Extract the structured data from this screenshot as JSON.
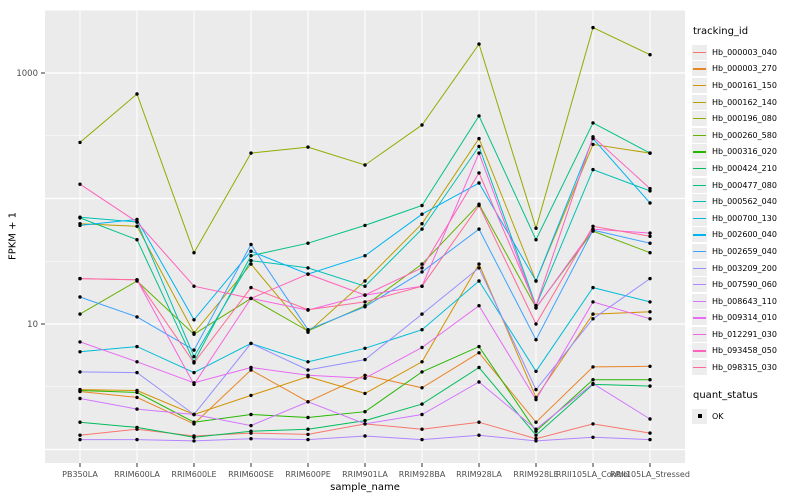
{
  "chart_data": {
    "type": "line",
    "title": "",
    "xlabel": "sample_name",
    "ylabel": "FPKM + 1",
    "y_scale": "log10",
    "y_axis_ticks": [
      {
        "value": 10,
        "label": "10"
      },
      {
        "value": 1000,
        "label": "1000"
      }
    ],
    "y_gridlines_major": [
      1,
      10,
      100,
      1000
    ],
    "y_gridlines_minor_log10": [
      0.5,
      1.5,
      2.5,
      3.5
    ],
    "categories": [
      "PB350LA",
      "RRIM600LA",
      "RRIM600LE",
      "RRIM600SE",
      "RRIM600PE",
      "RRIM901LA",
      "RRIM928BA",
      "RRIM928LA",
      "RRIM928LE",
      "RRII105LA_Control",
      "RRII105LA_Stressed"
    ],
    "series": [
      {
        "name": "Hb_000003_040",
        "color": "#F8766D",
        "values": [
          1.3,
          1.45,
          1.28,
          1.35,
          1.32,
          1.6,
          1.45,
          1.65,
          1.22,
          1.6,
          1.35
        ]
      },
      {
        "name": "Hb_000003_270",
        "color": "#E88526",
        "values": [
          2.9,
          2.6,
          1.6,
          4.3,
          2.4,
          3.9,
          3.1,
          5.9,
          1.65,
          4.55,
          4.6
        ]
      },
      {
        "name": "Hb_000161_150",
        "color": "#D39200",
        "values": [
          3.0,
          2.95,
          1.9,
          2.7,
          3.8,
          2.8,
          5.0,
          30.0,
          2.6,
          12.0,
          12.5
        ]
      },
      {
        "name": "Hb_000162_140",
        "color": "#B79F00",
        "values": [
          63,
          60,
          8.5,
          30,
          8.6,
          22,
          63,
          300,
          22,
          270,
          230
        ]
      },
      {
        "name": "Hb_000196_080",
        "color": "#93AA00",
        "values": [
          280,
          680,
          37,
          230,
          257,
          185,
          385,
          1700,
          58,
          2300,
          1400
        ]
      },
      {
        "name": "Hb_000260_580",
        "color": "#64B200",
        "values": [
          12,
          22,
          8.3,
          16,
          8.8,
          14,
          30,
          90,
          13.5,
          55,
          37
        ]
      },
      {
        "name": "Hb_000316_020",
        "color": "#25B700",
        "values": [
          2.95,
          2.85,
          1.65,
          1.9,
          1.8,
          2.0,
          4.15,
          6.6,
          1.4,
          3.6,
          3.6
        ]
      },
      {
        "name": "Hb_000424_210",
        "color": "#00BC5C",
        "values": [
          1.65,
          1.5,
          1.25,
          1.4,
          1.45,
          1.7,
          2.3,
          4.5,
          1.3,
          3.3,
          3.2
        ]
      },
      {
        "name": "Hb_000477_080",
        "color": "#00C087",
        "values": [
          70,
          47,
          5.0,
          35,
          44,
          61,
          88,
          455,
          47,
          400,
          230
        ]
      },
      {
        "name": "Hb_000562_040",
        "color": "#00C0B4",
        "values": [
          71,
          65,
          5.5,
          32,
          28,
          20,
          57,
          260,
          14,
          170,
          115
        ]
      },
      {
        "name": "Hb_000700_130",
        "color": "#00BCD8",
        "values": [
          6.0,
          6.6,
          4.1,
          7.0,
          5.0,
          6.4,
          9.0,
          22,
          4.2,
          19.5,
          15
        ]
      },
      {
        "name": "Hb_002600_040",
        "color": "#00B3F2",
        "values": [
          61,
          68,
          10.8,
          38,
          25,
          35,
          75,
          133,
          22,
          300,
          92
        ]
      },
      {
        "name": "Hb_002659_040",
        "color": "#3DA1FF",
        "values": [
          16.4,
          11.4,
          6.2,
          43,
          9.0,
          13.7,
          26,
          57,
          7.5,
          56,
          44
        ]
      },
      {
        "name": "Hb_003209_200",
        "color": "#9590FF",
        "values": [
          4.15,
          4.1,
          1.9,
          7.0,
          4.3,
          5.2,
          12.0,
          28.0,
          3.0,
          11.0,
          23.0
        ]
      },
      {
        "name": "Hb_007590_060",
        "color": "#B385FF",
        "values": [
          1.2,
          1.2,
          1.17,
          1.22,
          1.2,
          1.28,
          1.2,
          1.3,
          1.17,
          1.25,
          1.2
        ]
      },
      {
        "name": "Hb_008643_110",
        "color": "#D277FF",
        "values": [
          2.55,
          2.1,
          1.9,
          1.55,
          2.4,
          1.6,
          1.9,
          3.45,
          1.45,
          3.35,
          1.75
        ]
      },
      {
        "name": "Hb_009314_010",
        "color": "#E76BF3",
        "values": [
          7.2,
          5.0,
          3.4,
          4.5,
          3.9,
          3.7,
          6.5,
          14.0,
          2.5,
          15.0,
          11.0
        ]
      },
      {
        "name": "Hb_012291_030",
        "color": "#F763DF",
        "values": [
          23,
          22.5,
          3.3,
          16,
          12.9,
          17,
          20,
          230,
          13.4,
          57,
          53
        ]
      },
      {
        "name": "Hb_093458_050",
        "color": "#FF62BC",
        "values": [
          130,
          65,
          20,
          16,
          25,
          17,
          28,
          160,
          14,
          310,
          120
        ]
      },
      {
        "name": "Hb_098315_030",
        "color": "#FF6A98",
        "values": [
          23,
          22.5,
          4.9,
          19.5,
          13,
          15,
          20,
          88,
          10,
          60,
          50
        ]
      }
    ],
    "legend": {
      "color_legend_title": "tracking_id",
      "shape_legend_title": "quant_status",
      "shape_items": [
        {
          "label": "OK",
          "marker": "black-point"
        }
      ]
    },
    "layout": {
      "legend_position": "right",
      "grid": "on",
      "panel_bg": "#EBEBEB",
      "grid_color": "#FFFFFF",
      "point_color": "#000000",
      "axis_text_color": "#4D4D4D",
      "tick_color": "#333333"
    }
  }
}
